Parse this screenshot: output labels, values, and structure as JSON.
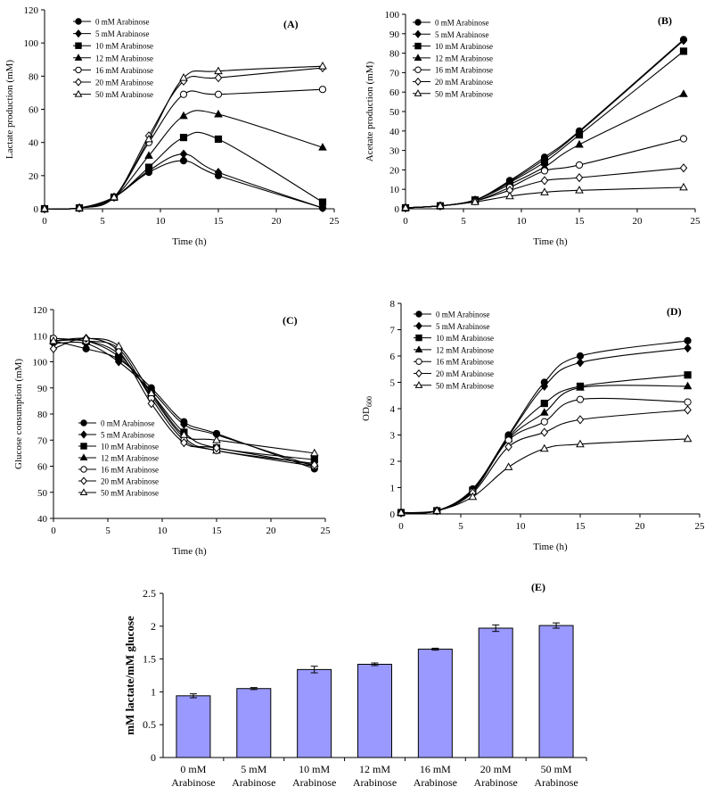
{
  "legend_labels": [
    "0 mM Arabinose",
    "5 mM Arabinose",
    "10 mM Arabinose",
    "12 mM Arabinose",
    "16 mM Arabinose",
    "20 mM Arabinose",
    "50 mM Arabinose"
  ],
  "markers": [
    "filled-circle",
    "filled-diamond",
    "filled-square",
    "filled-triangle",
    "open-circle",
    "open-diamond",
    "open-triangle"
  ],
  "colors": {
    "line": "#000000",
    "bar_fill": "#9999ff",
    "bar_stroke": "#000000"
  },
  "chart_data": [
    {
      "id": "A",
      "type": "line",
      "panel_label": "(A)",
      "title": "",
      "xlabel": "Time (h)",
      "ylabel": "Lactate production (mM)",
      "xlim": [
        0,
        25
      ],
      "ylim": [
        0,
        120
      ],
      "xticks": [
        0,
        5,
        10,
        15,
        20,
        25
      ],
      "yticks": [
        0,
        20,
        40,
        60,
        80,
        100,
        120
      ],
      "legend_position": "top-left",
      "x": [
        0,
        3,
        6,
        9,
        12,
        15,
        24
      ],
      "series": [
        {
          "name": "0 mM Arabinose",
          "values": [
            0,
            0.5,
            7,
            22,
            29,
            20,
            0.5
          ]
        },
        {
          "name": "5 mM Arabinose",
          "values": [
            0,
            0.5,
            7,
            23,
            33,
            22,
            0.5
          ]
        },
        {
          "name": "10 mM Arabinose",
          "values": [
            0,
            0.5,
            7,
            25,
            43,
            42,
            4
          ]
        },
        {
          "name": "12 mM Arabinose",
          "values": [
            0,
            0.5,
            7,
            32,
            56,
            57,
            37
          ]
        },
        {
          "name": "16 mM Arabinose",
          "values": [
            0,
            0.5,
            7,
            40,
            69,
            69,
            72
          ]
        },
        {
          "name": "20 mM Arabinose",
          "values": [
            0,
            0.5,
            7,
            44,
            77,
            79,
            85
          ]
        },
        {
          "name": "50 mM Arabinose",
          "values": [
            0,
            0.5,
            7,
            42,
            79,
            83,
            86
          ]
        }
      ]
    },
    {
      "id": "B",
      "type": "line",
      "panel_label": "(B)",
      "title": "",
      "xlabel": "Time (h)",
      "ylabel": "Acetate production (mM)",
      "xlim": [
        0,
        25
      ],
      "ylim": [
        0,
        100
      ],
      "xticks": [
        0,
        5,
        10,
        15,
        20,
        25
      ],
      "yticks": [
        0,
        10,
        20,
        30,
        40,
        50,
        60,
        70,
        80,
        90,
        100
      ],
      "legend_position": "top-left",
      "x": [
        0,
        3,
        6,
        9,
        12,
        15,
        24
      ],
      "series": [
        {
          "name": "0 mM Arabinose",
          "values": [
            0.5,
            1.5,
            4.5,
            14.5,
            26.5,
            40,
            87
          ]
        },
        {
          "name": "5 mM Arabinose",
          "values": [
            0.5,
            1.5,
            4.5,
            14,
            25.5,
            39.5,
            86.5
          ]
        },
        {
          "name": "10 mM Arabinose",
          "values": [
            0.5,
            1.5,
            4.5,
            13.5,
            24,
            38,
            81
          ]
        },
        {
          "name": "12 mM Arabinose",
          "values": [
            0.5,
            1.5,
            4.5,
            12.5,
            21.5,
            33,
            59
          ]
        },
        {
          "name": "16 mM Arabinose",
          "values": [
            0.5,
            1.5,
            4,
            11,
            19.5,
            22.5,
            36
          ]
        },
        {
          "name": "20 mM Arabinose",
          "values": [
            0.5,
            1.5,
            4,
            9.5,
            14.5,
            16,
            21
          ]
        },
        {
          "name": "50 mM Arabinose",
          "values": [
            0.5,
            1.5,
            3.5,
            6.5,
            8.5,
            9.5,
            11
          ]
        }
      ]
    },
    {
      "id": "C",
      "type": "line",
      "panel_label": "(C)",
      "title": "",
      "xlabel": "Time (h)",
      "ylabel": "Glucose consumption (mM)",
      "xlim": [
        0,
        25
      ],
      "ylim": [
        40,
        120
      ],
      "xticks": [
        0,
        5,
        10,
        15,
        20,
        25
      ],
      "yticks": [
        40,
        50,
        60,
        70,
        80,
        90,
        100,
        110,
        120
      ],
      "legend_position": "bottom-left",
      "x": [
        0,
        3,
        6,
        9,
        12,
        15,
        24
      ],
      "series": [
        {
          "name": "0 mM Arabinose",
          "values": [
            108,
            105,
            101,
            90,
            77,
            72.5,
            59
          ]
        },
        {
          "name": "5 mM Arabinose",
          "values": [
            107,
            107,
            100,
            89,
            76,
            72,
            60
          ]
        },
        {
          "name": "10 mM Arabinose",
          "values": [
            108,
            108,
            102,
            88,
            73,
            67,
            62.5
          ]
        },
        {
          "name": "12 mM Arabinose",
          "values": [
            108,
            108,
            103,
            87,
            71,
            66,
            61
          ]
        },
        {
          "name": "16 mM Arabinose",
          "values": [
            109,
            108,
            105,
            86,
            70,
            66,
            60
          ]
        },
        {
          "name": "20 mM Arabinose",
          "values": [
            105,
            109,
            104,
            84,
            69,
            67,
            60.5
          ]
        },
        {
          "name": "50 mM Arabinose",
          "values": [
            108,
            109,
            106,
            88,
            72,
            70,
            65
          ]
        }
      ]
    },
    {
      "id": "D",
      "type": "line",
      "panel_label": "(D)",
      "title": "",
      "xlabel": "Time (h)",
      "ylabel": "OD",
      "ylabel_sub": "600",
      "xlim": [
        0,
        25
      ],
      "ylim": [
        0,
        8
      ],
      "xticks": [
        0,
        5,
        10,
        15,
        20,
        25
      ],
      "yticks": [
        0,
        1,
        2,
        3,
        4,
        5,
        6,
        7,
        8
      ],
      "legend_position": "top-left",
      "x": [
        0,
        3,
        6,
        9,
        12,
        15,
        24
      ],
      "series": [
        {
          "name": "0 mM Arabinose",
          "values": [
            0.05,
            0.12,
            0.95,
            3.0,
            5.0,
            6.0,
            6.58
          ]
        },
        {
          "name": "5 mM Arabinose",
          "values": [
            0.05,
            0.12,
            0.9,
            2.95,
            4.85,
            5.75,
            6.3
          ]
        },
        {
          "name": "10 mM Arabinose",
          "values": [
            0.05,
            0.12,
            0.9,
            2.9,
            4.2,
            4.85,
            5.28
          ]
        },
        {
          "name": "12 mM Arabinose",
          "values": [
            0.05,
            0.12,
            0.85,
            2.85,
            3.85,
            4.8,
            4.85
          ]
        },
        {
          "name": "16 mM Arabinose",
          "values": [
            0.05,
            0.12,
            0.85,
            2.8,
            3.5,
            4.35,
            4.25
          ]
        },
        {
          "name": "20 mM Arabinose",
          "values": [
            0.05,
            0.12,
            0.8,
            2.55,
            3.1,
            3.58,
            3.95
          ]
        },
        {
          "name": "50 mM Arabinose",
          "values": [
            0.05,
            0.12,
            0.65,
            1.78,
            2.48,
            2.65,
            2.85
          ]
        }
      ]
    },
    {
      "id": "E",
      "type": "bar",
      "panel_label": "(E)",
      "title": "",
      "xlabel": "",
      "ylabel": "mM lactate/mM glucose",
      "ylim": [
        0,
        2.5
      ],
      "yticks": [
        0,
        0.5,
        1,
        1.5,
        2,
        2.5
      ],
      "categories": [
        [
          "0 mM",
          "Arabinose"
        ],
        [
          "5 mM",
          "Arabinose"
        ],
        [
          "10 mM",
          "Arabinose"
        ],
        [
          "12 mM",
          "Arabinose"
        ],
        [
          "16 mM",
          "Arabinose"
        ],
        [
          "20 mM",
          "Arabinose"
        ],
        [
          "50 mM",
          "Arabinose"
        ]
      ],
      "values": [
        0.94,
        1.05,
        1.34,
        1.42,
        1.65,
        1.97,
        2.01
      ],
      "errors": [
        0.03,
        0.015,
        0.05,
        0.02,
        0.015,
        0.05,
        0.04
      ]
    }
  ]
}
